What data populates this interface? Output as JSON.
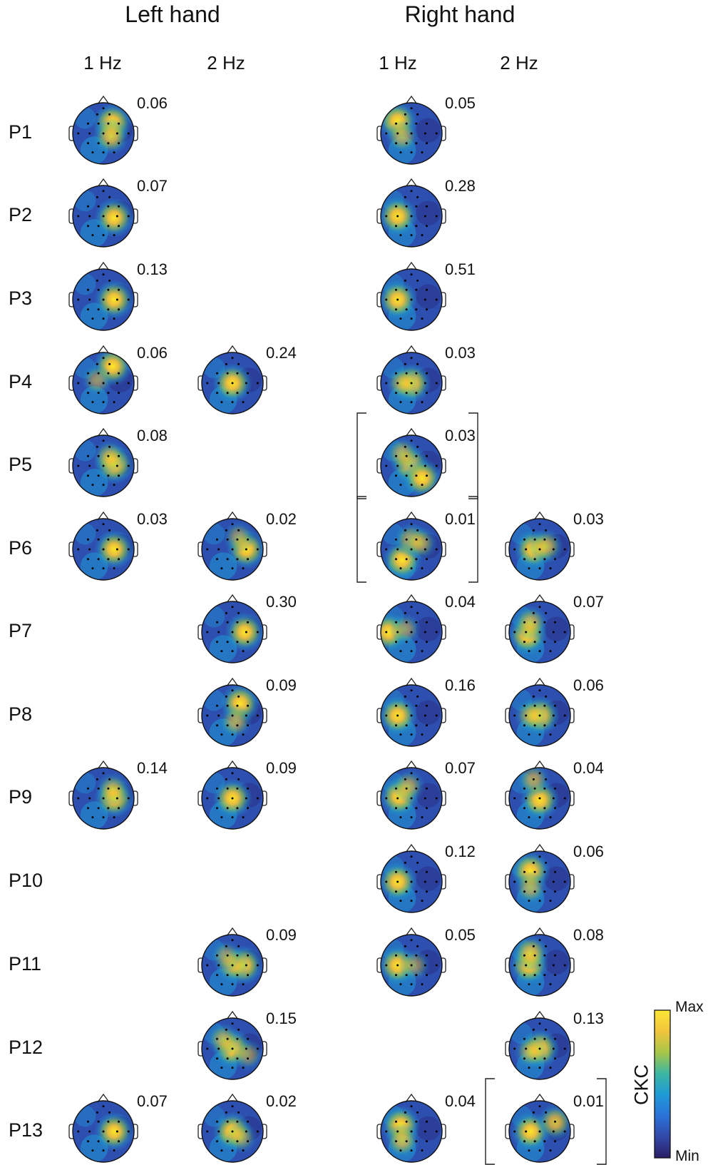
{
  "headers": {
    "left": "Left hand",
    "right": "Right hand"
  },
  "subheaders": [
    "1 Hz",
    "2 Hz",
    "1 Hz",
    "2 Hz"
  ],
  "participants": [
    "P1",
    "P2",
    "P3",
    "P4",
    "P5",
    "P6",
    "P7",
    "P8",
    "P9",
    "P10",
    "P11",
    "P12",
    "P13"
  ],
  "maps": [
    {
      "row": 0,
      "col": 0,
      "value": "0.06",
      "hot": [
        [
          0.3,
          -0.35,
          1
        ],
        [
          0.25,
          0.1,
          0.8
        ]
      ]
    },
    {
      "row": 0,
      "col": 2,
      "value": "0.05",
      "hot": [
        [
          -0.45,
          -0.4,
          1
        ],
        [
          -0.3,
          0.1,
          0.6
        ]
      ]
    },
    {
      "row": 1,
      "col": 0,
      "value": "0.07",
      "hot": [
        [
          0.35,
          0.05,
          1
        ]
      ]
    },
    {
      "row": 1,
      "col": 2,
      "value": "0.28",
      "hot": [
        [
          -0.45,
          0.0,
          1
        ]
      ]
    },
    {
      "row": 2,
      "col": 0,
      "value": "0.13",
      "hot": [
        [
          0.35,
          0.0,
          1
        ]
      ]
    },
    {
      "row": 2,
      "col": 2,
      "value": "0.51",
      "hot": [
        [
          -0.45,
          0.0,
          1
        ]
      ]
    },
    {
      "row": 3,
      "col": 0,
      "value": "0.06",
      "hot": [
        [
          0.3,
          -0.55,
          1
        ],
        [
          -0.2,
          -0.1,
          0.5
        ]
      ]
    },
    {
      "row": 3,
      "col": 1,
      "value": "0.24",
      "hot": [
        [
          0.0,
          0.0,
          1
        ]
      ]
    },
    {
      "row": 3,
      "col": 2,
      "value": "0.03",
      "hot": [
        [
          0.0,
          0.0,
          1
        ],
        [
          -0.3,
          0.0,
          0.6
        ]
      ]
    },
    {
      "row": 4,
      "col": 0,
      "value": "0.08",
      "hot": [
        [
          0.35,
          -0.05,
          1
        ],
        [
          0.2,
          -0.3,
          0.6
        ]
      ]
    },
    {
      "row": 4,
      "col": 2,
      "value": "0.03",
      "hot": [
        [
          -0.05,
          -0.05,
          0.9
        ],
        [
          0.35,
          0.4,
          1
        ],
        [
          -0.3,
          -0.4,
          0.6
        ]
      ],
      "bracket": true
    },
    {
      "row": 5,
      "col": 0,
      "value": "0.03",
      "hot": [
        [
          0.35,
          0.0,
          1
        ]
      ]
    },
    {
      "row": 5,
      "col": 1,
      "value": "0.02",
      "hot": [
        [
          0.45,
          0.0,
          1
        ],
        [
          0.2,
          -0.4,
          0.5
        ]
      ]
    },
    {
      "row": 5,
      "col": 2,
      "value": "0.01",
      "hot": [
        [
          -0.3,
          0.35,
          1
        ],
        [
          0.0,
          -0.3,
          0.7
        ],
        [
          0.3,
          -0.2,
          0.6
        ]
      ],
      "bracket": true
    },
    {
      "row": 5,
      "col": 3,
      "value": "0.03",
      "hot": [
        [
          -0.2,
          0.0,
          1
        ],
        [
          0.2,
          -0.1,
          0.7
        ]
      ]
    },
    {
      "row": 6,
      "col": 1,
      "value": "0.30",
      "hot": [
        [
          0.4,
          0.0,
          1
        ]
      ]
    },
    {
      "row": 6,
      "col": 2,
      "value": "0.04",
      "hot": [
        [
          -0.75,
          0.0,
          1
        ],
        [
          -0.2,
          -0.1,
          0.5
        ]
      ]
    },
    {
      "row": 6,
      "col": 3,
      "value": "0.07",
      "hot": [
        [
          -0.4,
          0.1,
          1
        ],
        [
          -0.3,
          -0.3,
          0.7
        ]
      ]
    },
    {
      "row": 7,
      "col": 1,
      "value": "0.09",
      "hot": [
        [
          0.25,
          -0.4,
          1
        ],
        [
          0.1,
          0.2,
          0.6
        ]
      ]
    },
    {
      "row": 7,
      "col": 2,
      "value": "0.16",
      "hot": [
        [
          -0.45,
          0.0,
          1
        ]
      ]
    },
    {
      "row": 7,
      "col": 3,
      "value": "0.06",
      "hot": [
        [
          0.0,
          0.0,
          1
        ],
        [
          -0.3,
          0.0,
          0.6
        ]
      ]
    },
    {
      "row": 8,
      "col": 0,
      "value": "0.14",
      "hot": [
        [
          0.35,
          0.0,
          1
        ],
        [
          0.3,
          -0.3,
          0.6
        ]
      ]
    },
    {
      "row": 8,
      "col": 1,
      "value": "0.09",
      "hot": [
        [
          0.0,
          0.0,
          1
        ]
      ]
    },
    {
      "row": 8,
      "col": 2,
      "value": "0.07",
      "hot": [
        [
          -0.4,
          -0.05,
          1
        ],
        [
          -0.1,
          -0.4,
          0.6
        ]
      ]
    },
    {
      "row": 8,
      "col": 3,
      "value": "0.04",
      "hot": [
        [
          0.0,
          0.05,
          1
        ],
        [
          -0.2,
          -0.6,
          0.6
        ]
      ]
    },
    {
      "row": 9,
      "col": 2,
      "value": "0.12",
      "hot": [
        [
          -0.45,
          0.0,
          1
        ]
      ]
    },
    {
      "row": 9,
      "col": 3,
      "value": "0.06",
      "hot": [
        [
          -0.3,
          -0.35,
          1
        ],
        [
          -0.3,
          0.2,
          0.6
        ]
      ]
    },
    {
      "row": 10,
      "col": 1,
      "value": "0.09",
      "hot": [
        [
          0.35,
          0.0,
          1
        ],
        [
          0.0,
          0.0,
          0.7
        ],
        [
          -0.2,
          -0.3,
          0.5
        ]
      ]
    },
    {
      "row": 10,
      "col": 2,
      "value": "0.05",
      "hot": [
        [
          -0.45,
          0.0,
          1
        ],
        [
          0.1,
          0.0,
          0.5
        ]
      ]
    },
    {
      "row": 10,
      "col": 3,
      "value": "0.08",
      "hot": [
        [
          -0.35,
          0.0,
          1
        ],
        [
          -0.3,
          -0.4,
          0.8
        ]
      ]
    },
    {
      "row": 11,
      "col": 1,
      "value": "0.15",
      "hot": [
        [
          0.0,
          0.0,
          1
        ],
        [
          -0.3,
          -0.3,
          0.6
        ],
        [
          0.5,
          0.2,
          0.5
        ]
      ]
    },
    {
      "row": 11,
      "col": 3,
      "value": "0.13",
      "hot": [
        [
          0.0,
          0.0,
          1
        ],
        [
          -0.3,
          0.1,
          0.6
        ]
      ]
    },
    {
      "row": 12,
      "col": 0,
      "value": "0.07",
      "hot": [
        [
          0.35,
          0.0,
          1
        ]
      ]
    },
    {
      "row": 12,
      "col": 1,
      "value": "0.02",
      "hot": [
        [
          0.0,
          0.0,
          1
        ],
        [
          0.3,
          0.2,
          0.5
        ]
      ]
    },
    {
      "row": 12,
      "col": 2,
      "value": "0.04",
      "hot": [
        [
          -0.35,
          -0.2,
          1
        ],
        [
          -0.3,
          0.3,
          0.7
        ]
      ]
    },
    {
      "row": 12,
      "col": 3,
      "value": "0.01",
      "hot": [
        [
          -0.3,
          0.0,
          1
        ],
        [
          0.5,
          -0.3,
          0.8
        ]
      ],
      "bracket": true
    }
  ],
  "colorbar": {
    "label": "CKC",
    "max": "Max",
    "min": "Min",
    "colors": [
      "#fce636",
      "#f0c43c",
      "#a8c648",
      "#3db6a2",
      "#1e9ad6",
      "#2b72d8",
      "#3248a8",
      "#2a1e66"
    ]
  }
}
